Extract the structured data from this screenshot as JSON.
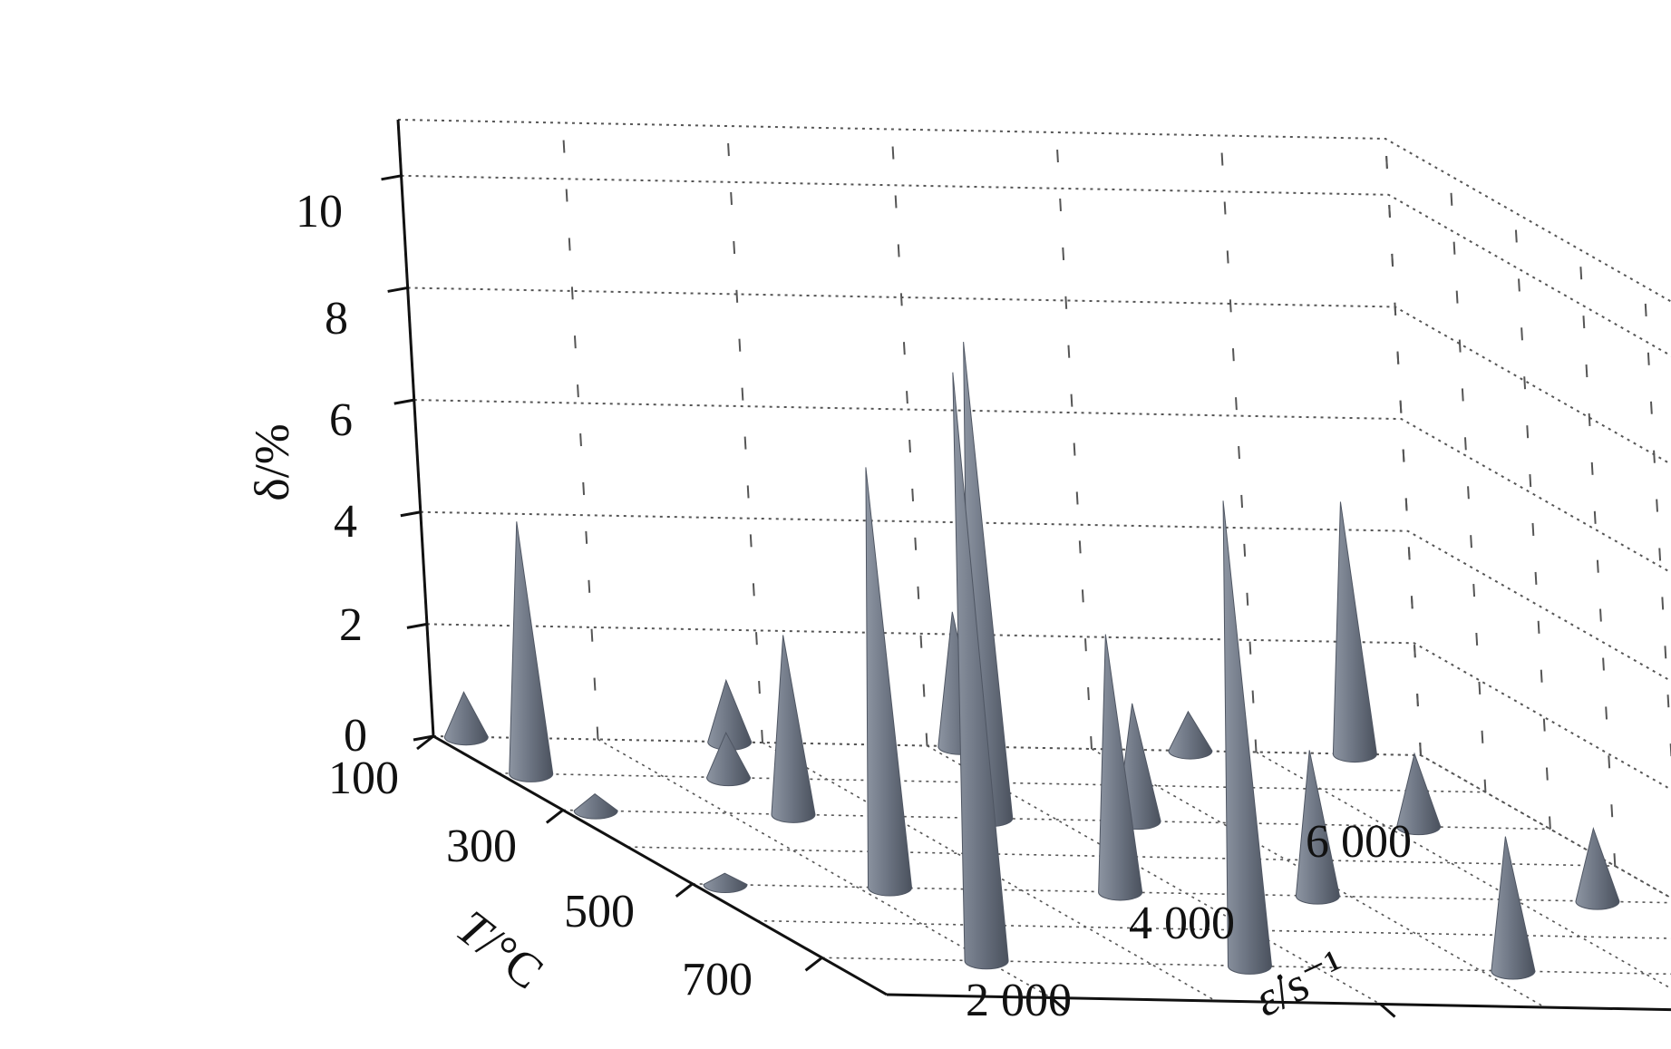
{
  "chart_data": {
    "type": "3d-cone",
    "zlabel": "δ/%",
    "xlabel_var": "T",
    "xlabel_unit": "/°C",
    "ylabel_var": "ε̇",
    "ylabel_unit": "/s⁻¹",
    "z_ticks": [
      "0",
      "2",
      "4",
      "6",
      "8",
      "10"
    ],
    "x_ticks": [
      "100",
      "300",
      "500",
      "700"
    ],
    "y_ticks": [
      "2 000",
      "4 000",
      "6 000"
    ],
    "xlim": [
      100,
      800
    ],
    "ylim": [
      1000,
      7000
    ],
    "zlim": [
      0,
      11
    ],
    "grid": true,
    "colors": {
      "cone": "#6b7380",
      "cone_shadow": "#4f5663",
      "cone_light": "#8a929e",
      "grid": "#555555",
      "axis": "#111111"
    },
    "points": [
      {
        "T": 100,
        "rate": 1200,
        "delta": 0.8
      },
      {
        "T": 100,
        "rate": 2800,
        "delta": 1.1
      },
      {
        "T": 100,
        "rate": 4200,
        "delta": 2.4
      },
      {
        "T": 100,
        "rate": 5600,
        "delta": 0.7
      },
      {
        "T": 100,
        "rate": 6600,
        "delta": 4.5
      },
      {
        "T": 200,
        "rate": 1200,
        "delta": 4.5
      },
      {
        "T": 200,
        "rate": 2400,
        "delta": 0.8
      },
      {
        "T": 300,
        "rate": 1200,
        "delta": 0.3
      },
      {
        "T": 300,
        "rate": 2400,
        "delta": 3.2
      },
      {
        "T": 300,
        "rate": 3600,
        "delta": 8.5
      },
      {
        "T": 300,
        "rate": 4500,
        "delta": 2.1
      },
      {
        "T": 300,
        "rate": 6200,
        "delta": 1.3
      },
      {
        "T": 500,
        "rate": 1200,
        "delta": 0.2
      },
      {
        "T": 500,
        "rate": 2200,
        "delta": 7.5
      },
      {
        "T": 500,
        "rate": 3600,
        "delta": 4.6
      },
      {
        "T": 500,
        "rate": 4800,
        "delta": 2.6
      },
      {
        "T": 500,
        "rate": 6500,
        "delta": 1.3
      },
      {
        "T": 700,
        "rate": 2000,
        "delta": 10.5
      },
      {
        "T": 700,
        "rate": 3600,
        "delta": 8.3
      },
      {
        "T": 700,
        "rate": 5200,
        "delta": 2.4
      }
    ]
  }
}
